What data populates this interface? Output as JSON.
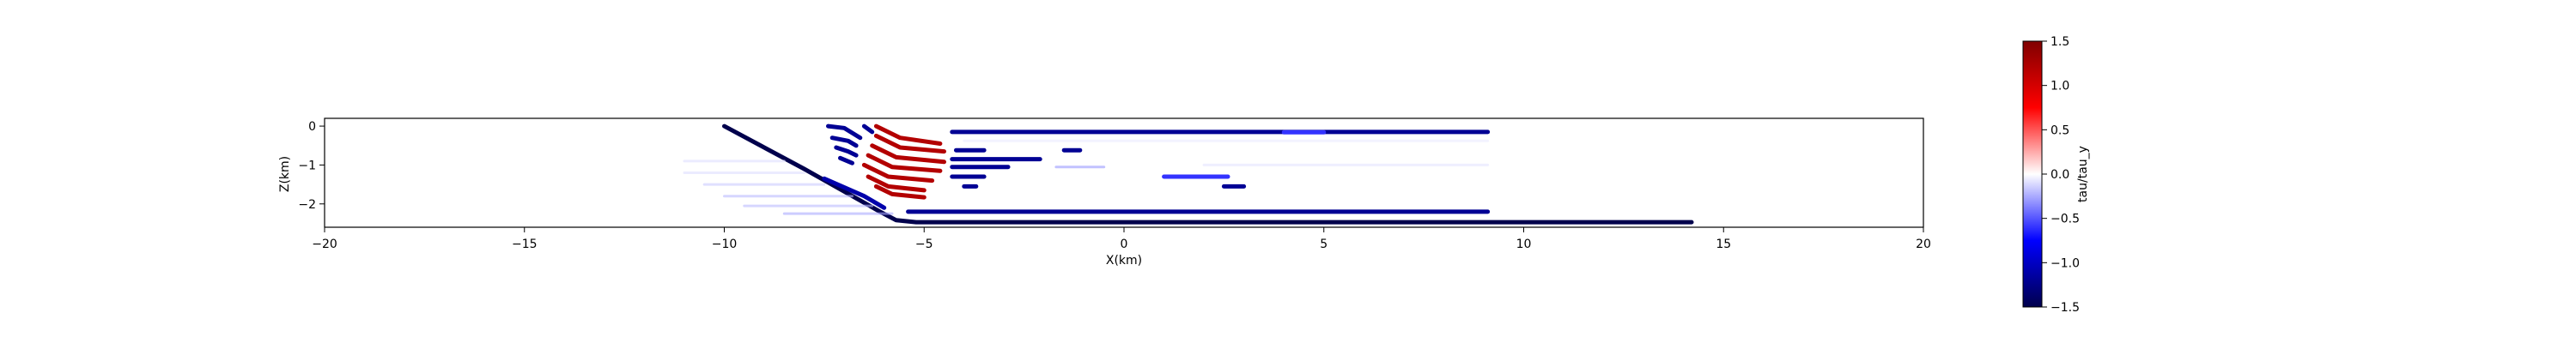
{
  "chart_data": {
    "type": "scatter",
    "title": "",
    "xlabel": "X(km)",
    "ylabel": "Z(km)",
    "xlim": [
      -20,
      20
    ],
    "ylim": [
      -2.6,
      0.2
    ],
    "x_ticks": [
      -20,
      -15,
      -10,
      -5,
      0,
      5,
      10,
      15,
      20
    ],
    "x_tick_labels": [
      "−20",
      "−15",
      "−10",
      "−5",
      "0",
      "5",
      "10",
      "15",
      "20"
    ],
    "y_ticks": [
      0,
      -1,
      -2
    ],
    "y_tick_labels": [
      "0",
      "−1",
      "−2"
    ],
    "grid": false,
    "colorbar": {
      "label": "tau/tau_y",
      "colormap": "seismic",
      "range": [
        -1.5,
        1.5
      ],
      "ticks": [
        1.5,
        1.0,
        0.5,
        0.0,
        -0.5,
        -1.0,
        -1.5
      ],
      "tick_labels": [
        "1.5",
        "1.0",
        "0.5",
        "0.0",
        "−0.5",
        "−1.0",
        "−1.5"
      ]
    },
    "series": [
      {
        "points": [
          [
            -10,
            0
          ],
          [
            -8,
            -1.1
          ],
          [
            -6.1,
            -2.2
          ],
          [
            -5.7,
            -2.42
          ],
          [
            -5.2,
            -2.47
          ],
          [
            14.2,
            -2.47
          ]
        ],
        "value": -1.5
      },
      {
        "points": [
          [
            -7.5,
            -1.35
          ],
          [
            -6.5,
            -1.8
          ],
          [
            -6.0,
            -2.1
          ]
        ],
        "value": -1.1
      },
      {
        "points": [
          [
            -7.4,
            0.0
          ],
          [
            -7.0,
            -0.05
          ],
          [
            -6.6,
            -0.3
          ]
        ],
        "value": -1.2
      },
      {
        "points": [
          [
            -6.5,
            0.0
          ],
          [
            -6.3,
            -0.15
          ]
        ],
        "value": -1.2
      },
      {
        "points": [
          [
            -7.3,
            -0.3
          ],
          [
            -6.9,
            -0.38
          ],
          [
            -6.7,
            -0.5
          ]
        ],
        "value": -1.2
      },
      {
        "points": [
          [
            -7.2,
            -0.55
          ],
          [
            -6.9,
            -0.65
          ],
          [
            -6.7,
            -0.75
          ]
        ],
        "value": -1.2
      },
      {
        "points": [
          [
            -7.1,
            -0.82
          ],
          [
            -6.8,
            -0.95
          ]
        ],
        "value": -1.2
      },
      {
        "points": [
          [
            -6.2,
            0.0
          ],
          [
            -5.6,
            -0.3
          ],
          [
            -4.6,
            -0.45
          ]
        ],
        "value": 1.2
      },
      {
        "points": [
          [
            -6.2,
            -0.25
          ],
          [
            -5.6,
            -0.55
          ],
          [
            -4.5,
            -0.65
          ]
        ],
        "value": 1.2
      },
      {
        "points": [
          [
            -6.3,
            -0.5
          ],
          [
            -5.7,
            -0.8
          ],
          [
            -4.5,
            -0.92
          ]
        ],
        "value": 1.2
      },
      {
        "points": [
          [
            -6.4,
            -0.75
          ],
          [
            -5.8,
            -1.05
          ],
          [
            -4.6,
            -1.15
          ]
        ],
        "value": 1.2
      },
      {
        "points": [
          [
            -6.5,
            -1.0
          ],
          [
            -5.9,
            -1.3
          ],
          [
            -4.8,
            -1.4
          ]
        ],
        "value": 1.2
      },
      {
        "points": [
          [
            -6.4,
            -1.3
          ],
          [
            -5.9,
            -1.55
          ],
          [
            -5.0,
            -1.65
          ]
        ],
        "value": 1.2
      },
      {
        "points": [
          [
            -6.2,
            -1.55
          ],
          [
            -5.8,
            -1.75
          ],
          [
            -5.0,
            -1.83
          ]
        ],
        "value": 1.2
      },
      {
        "points": [
          [
            -4.3,
            -0.15
          ],
          [
            9.1,
            -0.15
          ]
        ],
        "value": -1.2
      },
      {
        "points": [
          [
            4.0,
            -0.16
          ],
          [
            5.0,
            -0.16
          ]
        ],
        "value": -0.6
      },
      {
        "points": [
          [
            -4.2,
            -0.62
          ],
          [
            -3.5,
            -0.62
          ]
        ],
        "value": -1.2
      },
      {
        "points": [
          [
            -4.3,
            -0.85
          ],
          [
            -2.1,
            -0.85
          ]
        ],
        "value": -1.2
      },
      {
        "points": [
          [
            -4.3,
            -1.05
          ],
          [
            -2.9,
            -1.05
          ]
        ],
        "value": -1.2
      },
      {
        "points": [
          [
            -4.3,
            -1.3
          ],
          [
            -3.5,
            -1.3
          ]
        ],
        "value": -1.2
      },
      {
        "points": [
          [
            -4.0,
            -1.55
          ],
          [
            -3.7,
            -1.55
          ]
        ],
        "value": -1.2
      },
      {
        "points": [
          [
            -1.5,
            -0.62
          ],
          [
            -1.1,
            -0.62
          ]
        ],
        "value": -1.2
      },
      {
        "points": [
          [
            -1.7,
            -1.05
          ],
          [
            -0.5,
            -1.05
          ]
        ],
        "value": -0.3
      },
      {
        "points": [
          [
            1.0,
            -1.3
          ],
          [
            2.6,
            -1.3
          ]
        ],
        "value": -0.6
      },
      {
        "points": [
          [
            2.5,
            -1.55
          ],
          [
            3.0,
            -1.55
          ]
        ],
        "value": -1.2
      },
      {
        "points": [
          [
            -5.4,
            -2.2
          ],
          [
            9.1,
            -2.2
          ]
        ],
        "value": -1.2
      },
      {
        "points": [
          [
            -11,
            -0.9
          ],
          [
            -8.5,
            -0.9
          ]
        ],
        "value": -0.1
      },
      {
        "points": [
          [
            -11,
            -1.2
          ],
          [
            -8.0,
            -1.2
          ]
        ],
        "value": -0.1
      },
      {
        "points": [
          [
            -10.5,
            -1.5
          ],
          [
            -7.5,
            -1.5
          ]
        ],
        "value": -0.15
      },
      {
        "points": [
          [
            -10,
            -1.8
          ],
          [
            -6.8,
            -1.8
          ]
        ],
        "value": -0.2
      },
      {
        "points": [
          [
            -9.5,
            -2.05
          ],
          [
            -6.3,
            -2.05
          ]
        ],
        "value": -0.2
      },
      {
        "points": [
          [
            -8.5,
            -2.25
          ],
          [
            -5.8,
            -2.25
          ]
        ],
        "value": -0.25
      },
      {
        "points": [
          [
            2.0,
            -1.0
          ],
          [
            9.1,
            -1.0
          ]
        ],
        "value": -0.08
      },
      {
        "points": [
          [
            -4.0,
            -0.38
          ],
          [
            9.1,
            -0.38
          ]
        ],
        "value": -0.06
      }
    ]
  }
}
